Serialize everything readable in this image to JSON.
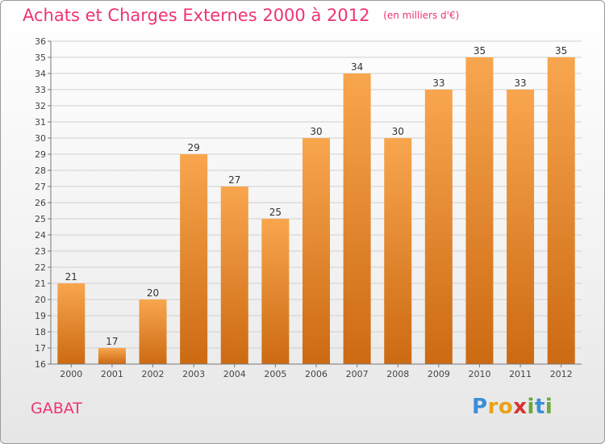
{
  "title": "Achats et Charges Externes 2000 à 2012",
  "unit_note": "(en milliers d'€)",
  "commune": "GABAT",
  "brand": {
    "letters": [
      {
        "char": "P",
        "color": "#3a8fd6"
      },
      {
        "char": "r",
        "color": "#e8a317"
      },
      {
        "char": "o",
        "color": "#e8a317"
      },
      {
        "char": "x",
        "color": "#d6332f"
      },
      {
        "char": "i",
        "color": "#6aa83a"
      },
      {
        "char": "t",
        "color": "#3a8fd6"
      },
      {
        "char": "i",
        "color": "#6aa83a"
      }
    ]
  },
  "colors": {
    "bar_light": "#f8a64e",
    "bar_dark": "#cc6a12",
    "accent": "#ee3377",
    "grid": "#d0d0d0",
    "axis": "#777777"
  },
  "chart_data": {
    "type": "bar",
    "title": "Achats et Charges Externes 2000 à 2012",
    "subtitle": "(en milliers d'€)",
    "categories": [
      "2000",
      "2001",
      "2002",
      "2003",
      "2004",
      "2005",
      "2006",
      "2007",
      "2008",
      "2009",
      "2010",
      "2011",
      "2012"
    ],
    "values": [
      21,
      17,
      20,
      29,
      27,
      25,
      30,
      34,
      30,
      33,
      35,
      33,
      35
    ],
    "ylim": [
      16,
      36
    ],
    "yticks": [
      16,
      17,
      18,
      19,
      20,
      21,
      22,
      23,
      24,
      25,
      26,
      27,
      28,
      29,
      30,
      31,
      32,
      33,
      34,
      35,
      36
    ],
    "grid": true,
    "legend": "none",
    "data_labels": true
  }
}
